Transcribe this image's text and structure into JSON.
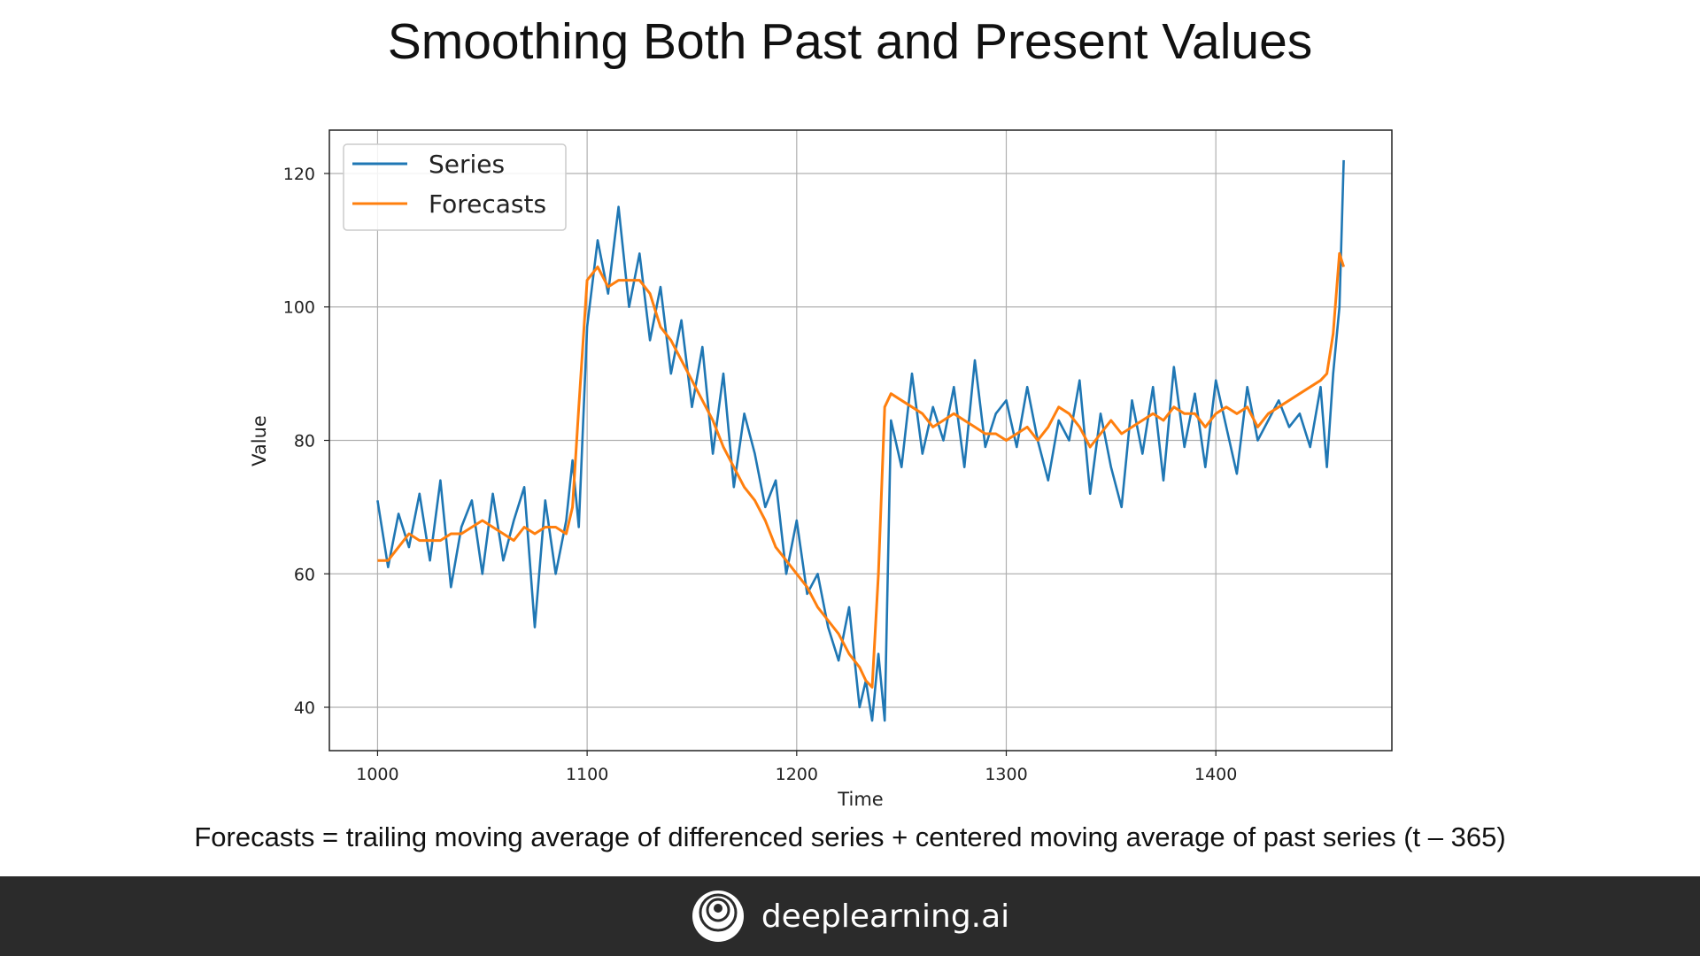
{
  "slide": {
    "title": "Smoothing Both Past and Present Values",
    "caption": "Forecasts = trailing moving average of differenced series + centered moving average of past series (t – 365)",
    "footer_brand": "deeplearning.ai",
    "footer_logo_icon": "deeplearning-logo-icon"
  },
  "chart_data": {
    "type": "line",
    "title": "",
    "xlabel": "Time",
    "ylabel": "Value",
    "xlim": [
      977,
      1484
    ],
    "ylim": [
      33.5,
      126.5
    ],
    "xticks": [
      1000,
      1100,
      1200,
      1300,
      1400
    ],
    "yticks": [
      40,
      60,
      80,
      100,
      120
    ],
    "grid": true,
    "legend_position": "top-left",
    "x": [
      1000,
      1005,
      1010,
      1015,
      1020,
      1025,
      1030,
      1035,
      1040,
      1045,
      1050,
      1055,
      1060,
      1065,
      1070,
      1075,
      1080,
      1085,
      1090,
      1093,
      1096,
      1100,
      1105,
      1110,
      1115,
      1120,
      1125,
      1130,
      1135,
      1140,
      1145,
      1150,
      1155,
      1160,
      1165,
      1170,
      1175,
      1180,
      1185,
      1190,
      1195,
      1200,
      1205,
      1210,
      1215,
      1220,
      1225,
      1230,
      1233,
      1236,
      1239,
      1242,
      1245,
      1250,
      1255,
      1260,
      1265,
      1270,
      1275,
      1280,
      1285,
      1290,
      1295,
      1300,
      1305,
      1310,
      1315,
      1320,
      1325,
      1330,
      1335,
      1340,
      1345,
      1350,
      1355,
      1360,
      1365,
      1370,
      1375,
      1380,
      1385,
      1390,
      1395,
      1400,
      1405,
      1410,
      1415,
      1420,
      1425,
      1430,
      1435,
      1440,
      1445,
      1450,
      1453,
      1456,
      1459,
      1461
    ],
    "series": [
      {
        "name": "Series",
        "color": "#1f77b4",
        "values": [
          71,
          61,
          69,
          64,
          72,
          62,
          74,
          58,
          67,
          71,
          60,
          72,
          62,
          68,
          73,
          52,
          71,
          60,
          68,
          77,
          67,
          97,
          110,
          102,
          115,
          100,
          108,
          95,
          103,
          90,
          98,
          85,
          94,
          78,
          90,
          73,
          84,
          78,
          70,
          74,
          60,
          68,
          57,
          60,
          52,
          47,
          55,
          40,
          44,
          38,
          48,
          38,
          83,
          76,
          90,
          78,
          85,
          80,
          88,
          76,
          92,
          79,
          84,
          86,
          79,
          88,
          80,
          74,
          83,
          80,
          89,
          72,
          84,
          76,
          70,
          86,
          78,
          88,
          74,
          91,
          79,
          87,
          76,
          89,
          82,
          75,
          88,
          80,
          83,
          86,
          82,
          84,
          79,
          88,
          76,
          90,
          100,
          122
        ]
      },
      {
        "name": "Forecasts",
        "color": "#ff7f0e",
        "values": [
          62,
          62,
          64,
          66,
          65,
          65,
          65,
          66,
          66,
          67,
          68,
          67,
          66,
          65,
          67,
          66,
          67,
          67,
          66,
          70,
          85,
          104,
          106,
          103,
          104,
          104,
          104,
          102,
          97,
          95,
          92,
          89,
          86,
          83,
          79,
          76,
          73,
          71,
          68,
          64,
          62,
          60,
          58,
          55,
          53,
          51,
          48,
          46,
          44,
          43,
          60,
          85,
          87,
          86,
          85,
          84,
          82,
          83,
          84,
          83,
          82,
          81,
          81,
          80,
          81,
          82,
          80,
          82,
          85,
          84,
          82,
          79,
          81,
          83,
          81,
          82,
          83,
          84,
          83,
          85,
          84,
          84,
          82,
          84,
          85,
          84,
          85,
          82,
          84,
          85,
          86,
          87,
          88,
          89,
          90,
          96,
          108,
          106
        ]
      }
    ]
  }
}
